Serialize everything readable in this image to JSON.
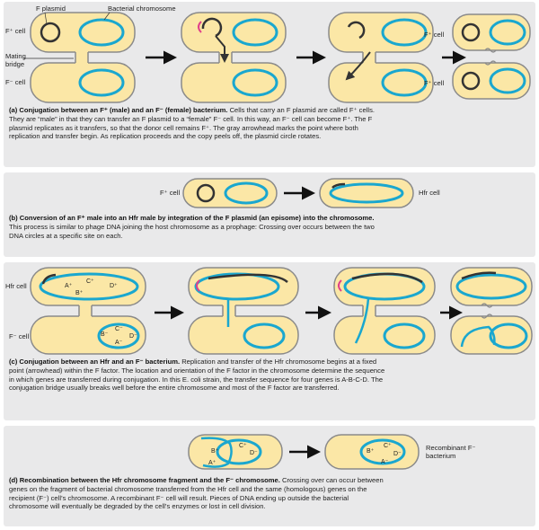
{
  "panel_a": {
    "labels": {
      "f_plasmid": "F plasmid",
      "bacterial_chromosome": "Bacterial chromosome",
      "fplus_cell": "F⁺ cell",
      "mating_bridge": "Mating bridge",
      "fminus_cell": "F⁻ cell",
      "fplus_cell_right": "F⁺ cell",
      "fplus_cell_right2": "F⁺ cell"
    },
    "caption_title": "(a) Conjugation between an F⁺ (male) and an F⁻ (female) bacterium.",
    "caption_body": " Cells that carry an F plasmid are called F⁺ cells. They are “male” in that they can transfer an F plasmid to a “female” F⁻ cell. In this way, an F⁻ cell can become F⁺. The F plasmid replicates as it transfers, so that the donor cell remains F⁺. The gray arrowhead marks the point where both replication and transfer begin. As replication proceeds and the copy peels off, the plasmid circle rotates."
  },
  "panel_b": {
    "labels": {
      "fplus_cell": "F⁺ cell",
      "hfr_cell": "Hfr cell"
    },
    "caption_title": "(b) Conversion of an F⁺ male into an Hfr male by integration of the F plasmid (an episome) into the chromosome.",
    "caption_body": " This process is similar to phage DNA joining the host chromosome as a prophage: Crossing over occurs between the two DNA circles at a specific site on each."
  },
  "panel_c": {
    "labels": {
      "hfr_cell": "Hfr cell",
      "fminus_cell": "F⁻ cell"
    },
    "genes": {
      "a": "A⁺",
      "b": "B⁺",
      "c": "C⁺",
      "d": "D⁺",
      "a_m": "A⁻",
      "b_m": "B⁻",
      "c_m": "C⁻",
      "d_m": "D⁻"
    },
    "caption_title": "(c) Conjugation between an Hfr and an F⁻ bacterium.",
    "caption_body": " Replication and transfer of the Hfr chromosome begins at a fixed point (arrowhead) within the F factor. The location and orientation of the F factor in the chromosome determine the sequence in which genes are transferred during conjugation. In this E. coli strain, the transfer sequence for four genes is A-B-C-D. The conjugation bridge usually breaks well before the entire chromosome and most of the F factor are transferred."
  },
  "panel_d": {
    "labels": {
      "recombinant": "Recombinant F⁻ bacterium"
    },
    "caption_title": "(d) Recombination between the Hfr chromosome fragment and the F⁻ chromosome.",
    "caption_body": " Crossing over can occur between genes on the fragment of bacterial chromosome transferred from the Hfr cell and the same (homologous) genes on the recipient (F⁻) cell’s chromosome. A recombinant F⁻ cell will result. Pieces of DNA ending up outside the bacterial chromosome will eventually be degraded by the cell’s enzymes or lost in cell division."
  },
  "colors": {
    "cell_fill": "#fbe7a6",
    "cell_stroke": "#8a8a8a",
    "chromosome": "#1aa7cf",
    "plasmid": "#333333",
    "arrowhead_pink": "#e0408a",
    "panel_bg": "#e9e9ea"
  }
}
